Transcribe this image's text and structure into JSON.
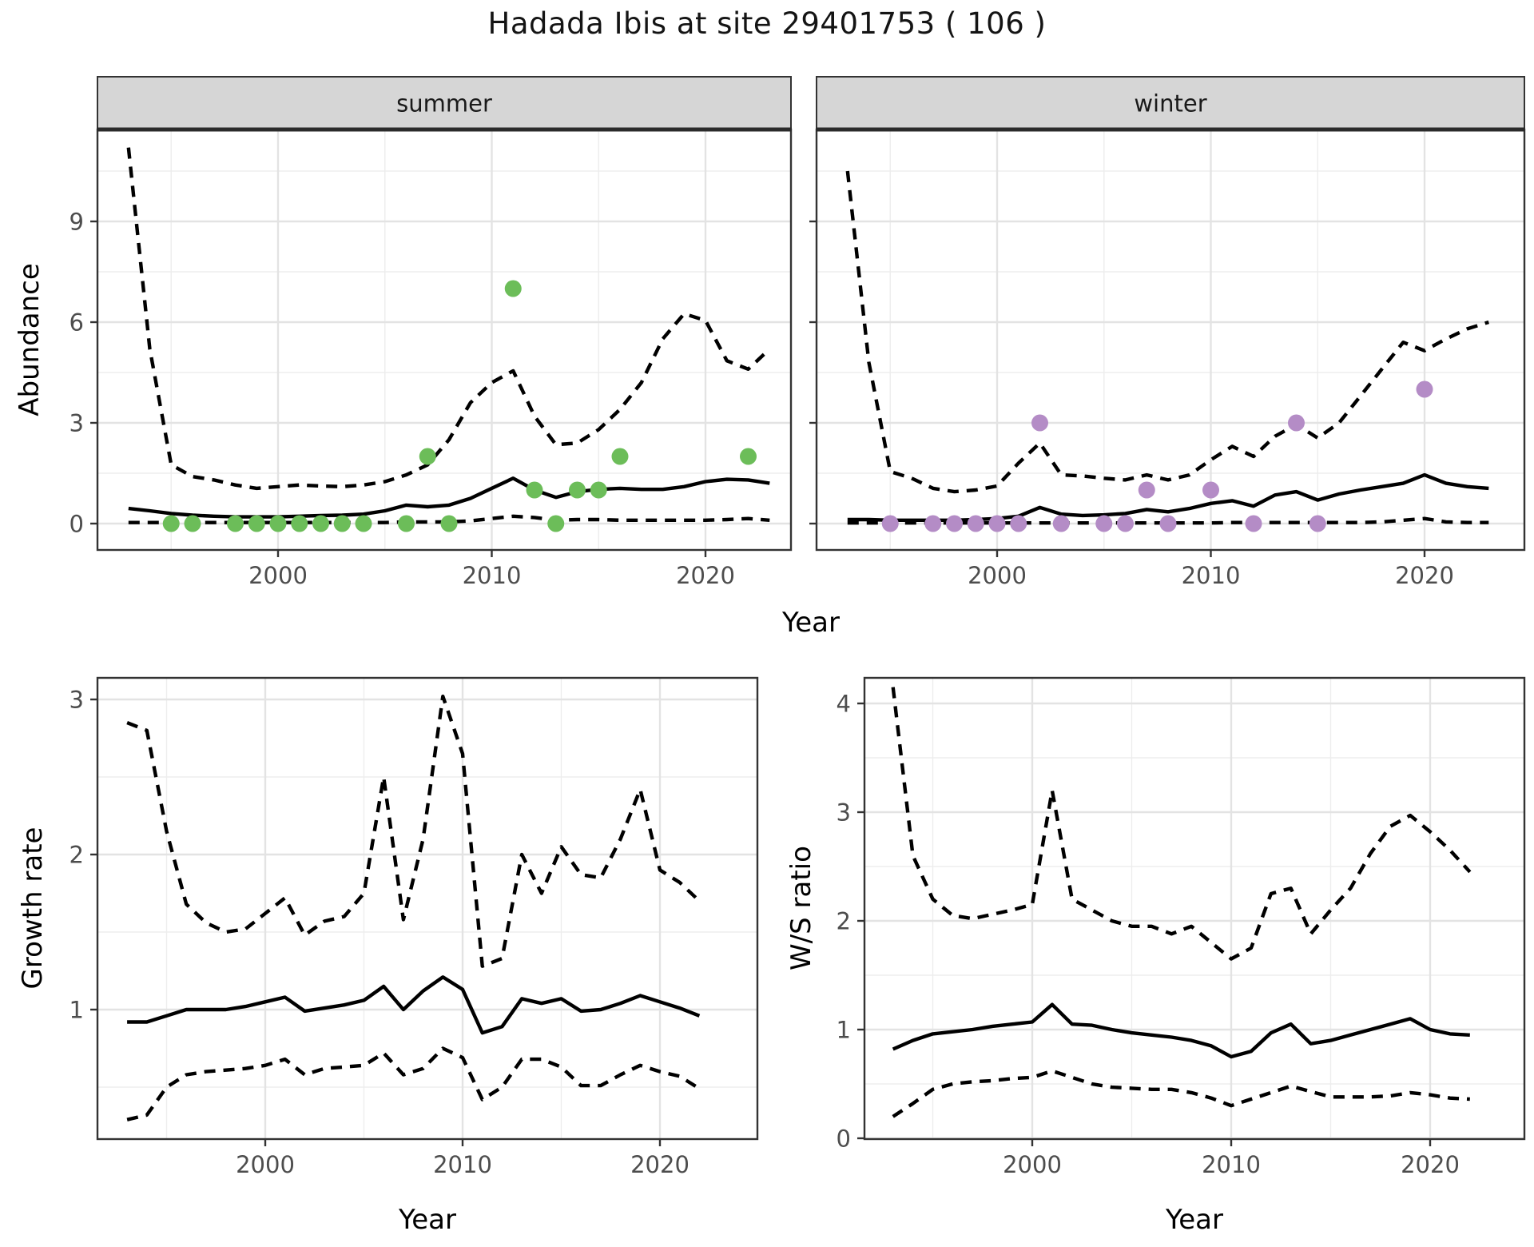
{
  "title": "Hadada Ibis at site 29401753 ( 106 )",
  "axis_titles": {
    "x_top": "Year",
    "x_bottom_left": "Year",
    "x_bottom_right": "Year",
    "y_top": "Abundance",
    "y_bottom_left": "Growth rate",
    "y_bottom_right": "W/S ratio"
  },
  "facets": {
    "left": "summer",
    "right": "winter"
  },
  "colors": {
    "summer_point": "#6CBD59",
    "winter_point": "#B48CC6",
    "line": "#000000",
    "grid_major": "#E3E3E3",
    "grid_minor": "#EDEDED",
    "panel_border": "#333333",
    "strip_bg": "#D6D6D6",
    "strip_text": "#1A1A1A",
    "tick_label": "#4D4D4D",
    "axis_title": "#000000",
    "title_text": "#141414"
  },
  "chart_data": [
    {
      "id": "abundance-summer",
      "type": "line",
      "title": "summer",
      "xlabel": "Year",
      "ylabel": "Abundance",
      "xlim": [
        1991.6,
        2024.4
      ],
      "ylim": [
        -0.8,
        11.7
      ],
      "x_ticks": [
        2000,
        2010,
        2020
      ],
      "y_ticks": [
        0,
        3,
        6,
        9
      ],
      "x_minor": [
        1995,
        2005,
        2015
      ],
      "y_minor": [
        1.5,
        4.5,
        7.5,
        10.5
      ],
      "grid": true,
      "legend": "none",
      "x": [
        1993,
        1994,
        1995,
        1996,
        1997,
        1998,
        1999,
        2000,
        2001,
        2002,
        2003,
        2004,
        2005,
        2006,
        2007,
        2008,
        2009,
        2010,
        2011,
        2012,
        2013,
        2014,
        2015,
        2016,
        2017,
        2018,
        2019,
        2020,
        2021,
        2022,
        2023
      ],
      "series": [
        {
          "name": "median",
          "style": "solid",
          "values": [
            0.45,
            0.38,
            0.3,
            0.25,
            0.22,
            0.2,
            0.2,
            0.2,
            0.22,
            0.24,
            0.25,
            0.28,
            0.38,
            0.55,
            0.5,
            0.55,
            0.75,
            1.05,
            1.35,
            1.0,
            0.78,
            0.95,
            1.02,
            1.05,
            1.02,
            1.02,
            1.1,
            1.25,
            1.32,
            1.3,
            1.2
          ]
        },
        {
          "name": "upper-ci",
          "style": "dashed",
          "values": [
            11.2,
            5.2,
            1.75,
            1.4,
            1.3,
            1.15,
            1.05,
            1.1,
            1.15,
            1.12,
            1.1,
            1.15,
            1.25,
            1.45,
            1.75,
            2.5,
            3.6,
            4.2,
            4.55,
            3.2,
            2.35,
            2.4,
            2.8,
            3.4,
            4.2,
            5.5,
            6.25,
            6.05,
            4.85,
            4.6,
            5.2
          ]
        },
        {
          "name": "lower-ci",
          "style": "dashed",
          "values": [
            0.03,
            0.03,
            0.03,
            0.03,
            0.03,
            0.03,
            0.03,
            0.03,
            0.03,
            0.03,
            0.03,
            0.03,
            0.03,
            0.05,
            0.05,
            0.05,
            0.08,
            0.15,
            0.22,
            0.18,
            0.1,
            0.12,
            0.12,
            0.1,
            0.1,
            0.1,
            0.1,
            0.1,
            0.12,
            0.15,
            0.1
          ]
        }
      ],
      "points": {
        "name": "observed-counts",
        "color_key": "summer_point",
        "data": [
          [
            1995,
            0
          ],
          [
            1996,
            0
          ],
          [
            1998,
            0
          ],
          [
            1999,
            0
          ],
          [
            2000,
            0
          ],
          [
            2001,
            0
          ],
          [
            2002,
            0
          ],
          [
            2003,
            0
          ],
          [
            2004,
            0
          ],
          [
            2006,
            0
          ],
          [
            2007,
            2
          ],
          [
            2008,
            0
          ],
          [
            2011,
            7
          ],
          [
            2012,
            1
          ],
          [
            2013,
            0
          ],
          [
            2014,
            1
          ],
          [
            2015,
            1
          ],
          [
            2016,
            2
          ],
          [
            2022,
            2
          ]
        ]
      }
    },
    {
      "id": "abundance-winter",
      "type": "line",
      "title": "winter",
      "xlabel": "Year",
      "ylabel": "Abundance",
      "xlim": [
        1991.6,
        2024.4
      ],
      "ylim": [
        -0.8,
        11.7
      ],
      "x_ticks": [
        2000,
        2010,
        2020
      ],
      "y_ticks": [
        0,
        3,
        6,
        9
      ],
      "x_minor": [
        1995,
        2005,
        2015
      ],
      "y_minor": [
        1.5,
        4.5,
        7.5,
        10.5
      ],
      "grid": true,
      "legend": "none",
      "x": [
        1993,
        1994,
        1995,
        1996,
        1997,
        1998,
        1999,
        2000,
        2001,
        2002,
        2003,
        2004,
        2005,
        2006,
        2007,
        2008,
        2009,
        2010,
        2011,
        2012,
        2013,
        2014,
        2015,
        2016,
        2017,
        2018,
        2019,
        2020,
        2021,
        2022,
        2023
      ],
      "series": [
        {
          "name": "median",
          "style": "solid",
          "values": [
            0.12,
            0.12,
            0.1,
            0.1,
            0.1,
            0.1,
            0.12,
            0.15,
            0.22,
            0.48,
            0.28,
            0.24,
            0.26,
            0.3,
            0.42,
            0.35,
            0.45,
            0.6,
            0.68,
            0.52,
            0.85,
            0.95,
            0.7,
            0.88,
            1.0,
            1.1,
            1.2,
            1.45,
            1.2,
            1.1,
            1.05
          ]
        },
        {
          "name": "upper-ci",
          "style": "dashed",
          "values": [
            10.5,
            4.8,
            1.55,
            1.35,
            1.05,
            0.95,
            1.0,
            1.12,
            1.8,
            2.4,
            1.45,
            1.42,
            1.35,
            1.3,
            1.45,
            1.3,
            1.45,
            1.9,
            2.3,
            2.0,
            2.6,
            2.95,
            2.55,
            3.0,
            3.8,
            4.6,
            5.4,
            5.15,
            5.5,
            5.8,
            6.0
          ]
        },
        {
          "name": "lower-ci",
          "style": "dashed",
          "values": [
            0.02,
            0.02,
            0.02,
            0.02,
            0.02,
            0.02,
            0.02,
            0.02,
            0.02,
            0.02,
            0.02,
            0.02,
            0.02,
            0.02,
            0.02,
            0.02,
            0.02,
            0.02,
            0.03,
            0.03,
            0.03,
            0.03,
            0.03,
            0.03,
            0.03,
            0.05,
            0.1,
            0.15,
            0.05,
            0.03,
            0.03
          ]
        }
      ],
      "points": {
        "name": "observed-counts",
        "color_key": "winter_point",
        "data": [
          [
            1995,
            0
          ],
          [
            1997,
            0
          ],
          [
            1998,
            0
          ],
          [
            1999,
            0
          ],
          [
            2000,
            0
          ],
          [
            2001,
            0
          ],
          [
            2002,
            3
          ],
          [
            2003,
            0
          ],
          [
            2005,
            0
          ],
          [
            2006,
            0
          ],
          [
            2007,
            1
          ],
          [
            2008,
            0
          ],
          [
            2010,
            1
          ],
          [
            2012,
            0
          ],
          [
            2014,
            3
          ],
          [
            2015,
            0
          ],
          [
            2020,
            4
          ]
        ]
      }
    },
    {
      "id": "growth-rate",
      "type": "line",
      "title": "",
      "xlabel": "Year",
      "ylabel": "Growth rate",
      "xlim": [
        1991.5,
        2024.4
      ],
      "ylim": [
        0.16,
        3.14
      ],
      "x_ticks": [
        2000,
        2010,
        2020
      ],
      "y_ticks": [
        1,
        2,
        3
      ],
      "x_minor": [
        1995,
        2005,
        2015
      ],
      "y_minor": [
        0.5,
        1.5,
        2.5
      ],
      "grid": true,
      "legend": "none",
      "x": [
        1993,
        1994,
        1995,
        1996,
        1997,
        1998,
        1999,
        2000,
        2001,
        2002,
        2003,
        2004,
        2005,
        2006,
        2007,
        2008,
        2009,
        2010,
        2011,
        2012,
        2013,
        2014,
        2015,
        2016,
        2017,
        2018,
        2019,
        2020,
        2021,
        2022
      ],
      "series": [
        {
          "name": "median",
          "style": "solid",
          "values": [
            0.92,
            0.92,
            0.96,
            1.0,
            1.0,
            1.0,
            1.02,
            1.05,
            1.08,
            0.99,
            1.01,
            1.03,
            1.06,
            1.15,
            1.0,
            1.12,
            1.21,
            1.13,
            0.85,
            0.89,
            1.07,
            1.04,
            1.07,
            0.99,
            1.0,
            1.04,
            1.09,
            1.05,
            1.01,
            0.96
          ]
        },
        {
          "name": "upper-ci",
          "style": "dashed",
          "values": [
            2.85,
            2.8,
            2.15,
            1.68,
            1.56,
            1.5,
            1.52,
            1.62,
            1.72,
            1.48,
            1.57,
            1.6,
            1.75,
            2.5,
            1.58,
            2.1,
            3.02,
            2.65,
            1.28,
            1.33,
            2.0,
            1.75,
            2.05,
            1.87,
            1.85,
            2.1,
            2.42,
            1.9,
            1.82,
            1.7
          ]
        },
        {
          "name": "lower-ci",
          "style": "dashed",
          "values": [
            0.29,
            0.32,
            0.5,
            0.58,
            0.6,
            0.61,
            0.62,
            0.64,
            0.68,
            0.58,
            0.62,
            0.63,
            0.64,
            0.72,
            0.58,
            0.62,
            0.75,
            0.69,
            0.42,
            0.5,
            0.68,
            0.68,
            0.63,
            0.51,
            0.51,
            0.58,
            0.64,
            0.6,
            0.57,
            0.49
          ]
        }
      ],
      "points": null
    },
    {
      "id": "ws-ratio",
      "type": "line",
      "title": "",
      "xlabel": "Year",
      "ylabel": "W/S ratio",
      "xlim": [
        1991.6,
        2024.2
      ],
      "ylim": [
        -0.01,
        4.24
      ],
      "x_ticks": [
        2000,
        2010,
        2020
      ],
      "y_ticks": [
        0,
        1,
        2,
        3,
        4
      ],
      "x_minor": [
        1995,
        2005,
        2015
      ],
      "y_minor": [
        0.5,
        1.5,
        2.5,
        3.5
      ],
      "grid": true,
      "legend": "none",
      "x": [
        1993,
        1994,
        1995,
        1996,
        1997,
        1998,
        1999,
        2000,
        2001,
        2002,
        2003,
        2004,
        2005,
        2006,
        2007,
        2008,
        2009,
        2010,
        2011,
        2012,
        2013,
        2014,
        2015,
        2016,
        2017,
        2018,
        2019,
        2020,
        2021,
        2022
      ],
      "series": [
        {
          "name": "median",
          "style": "solid",
          "values": [
            0.82,
            0.9,
            0.96,
            0.98,
            1.0,
            1.03,
            1.05,
            1.07,
            1.23,
            1.05,
            1.04,
            1.0,
            0.97,
            0.95,
            0.93,
            0.9,
            0.85,
            0.75,
            0.8,
            0.97,
            1.05,
            0.87,
            0.9,
            0.95,
            1.0,
            1.05,
            1.1,
            1.0,
            0.96,
            0.95
          ]
        },
        {
          "name": "upper-ci",
          "style": "dashed",
          "values": [
            4.15,
            2.6,
            2.2,
            2.05,
            2.02,
            2.06,
            2.1,
            2.15,
            3.2,
            2.2,
            2.1,
            2.0,
            1.95,
            1.95,
            1.88,
            1.95,
            1.8,
            1.65,
            1.75,
            2.25,
            2.3,
            1.88,
            2.1,
            2.3,
            2.62,
            2.87,
            2.97,
            2.82,
            2.65,
            2.45
          ]
        },
        {
          "name": "lower-ci",
          "style": "dashed",
          "values": [
            0.2,
            0.32,
            0.45,
            0.5,
            0.52,
            0.53,
            0.55,
            0.56,
            0.62,
            0.56,
            0.5,
            0.47,
            0.46,
            0.45,
            0.45,
            0.42,
            0.37,
            0.3,
            0.36,
            0.42,
            0.48,
            0.43,
            0.38,
            0.38,
            0.38,
            0.39,
            0.42,
            0.4,
            0.37,
            0.36
          ]
        }
      ],
      "points": null
    }
  ]
}
